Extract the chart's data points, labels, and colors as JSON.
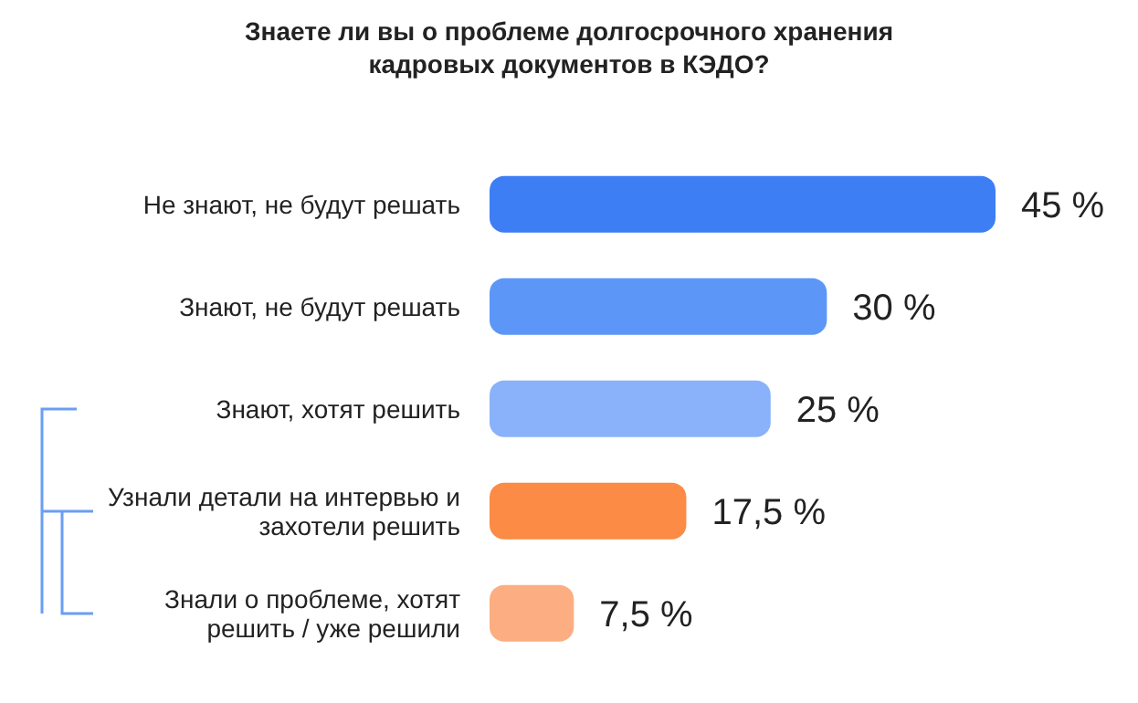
{
  "chart_data": {
    "type": "bar",
    "orientation": "horizontal",
    "title": "Знаете ли вы о проблеме долгосрочного хранения кадровых документов в КЭДО?",
    "categories": [
      "Не знают, не будут решать",
      "Знают, не будут решать",
      "Знают, хотят решить",
      "Узнали детали на интервью и захотели решить",
      "Знали о проблеме, хотят решить / уже решили"
    ],
    "values": [
      45,
      30,
      25,
      17.5,
      7.5
    ],
    "colors": [
      "#3d7ef5",
      "#5c97f7",
      "#8ab2fa",
      "#fb8b45",
      "#fcae82"
    ],
    "value_labels": [
      "45 %",
      "30 %",
      "25 %",
      "17,5 %",
      "7,5 %"
    ],
    "grid": false,
    "legend": false
  }
}
